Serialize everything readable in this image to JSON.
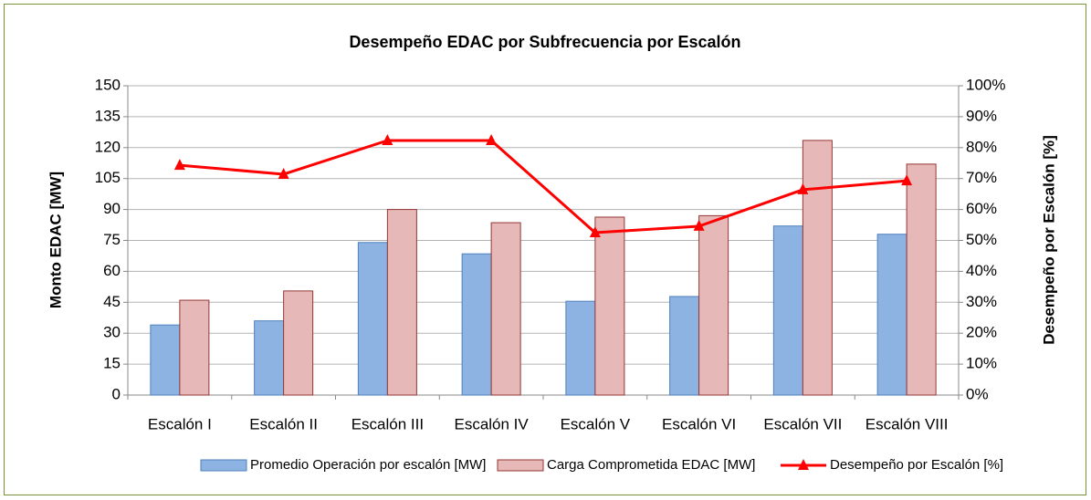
{
  "chart_data": {
    "type": "bar",
    "title": "Desempeño EDAC por Subfrecuencia por Escalón",
    "y_label": "Monto EDAC [MW]",
    "y2_label": "Desempeño por Escalón [%]",
    "categories": [
      "Escalón I",
      "Escalón II",
      "Escalón III",
      "Escalón IV",
      "Escalón V",
      "Escalón VI",
      "Escalón VII",
      "Escalón VIII"
    ],
    "series": [
      {
        "name": "Promedio Operación por escalón [MW]",
        "color": "#8db3e2",
        "values": [
          34,
          36,
          74,
          68.5,
          45.5,
          47.8,
          82,
          78
        ]
      },
      {
        "name": "Carga Comprometida EDAC [MW]",
        "color": "#e6b9b8",
        "values": [
          46,
          50.5,
          90,
          83.6,
          86.3,
          87,
          123.5,
          112
        ]
      },
      {
        "name": "Desempeño por Escalón [%]",
        "color": "#ff0000",
        "type": "line",
        "axis": "y2",
        "values": [
          74.3,
          71.4,
          82.3,
          82.3,
          52.5,
          54.6,
          66.4,
          69.3
        ]
      }
    ],
    "ylim": [
      0,
      150
    ],
    "yticks": [
      0,
      15,
      30,
      45,
      60,
      75,
      90,
      105,
      120,
      135,
      150
    ],
    "y2lim": [
      0,
      100
    ],
    "y2ticks": [
      {
        "value": 0,
        "label": "0%"
      },
      {
        "value": 10,
        "label": "10%"
      },
      {
        "value": 20,
        "label": "20%"
      },
      {
        "value": 30,
        "label": "30%"
      },
      {
        "value": 40,
        "label": "40%"
      },
      {
        "value": 50,
        "label": "50%"
      },
      {
        "value": 60,
        "label": "60%"
      },
      {
        "value": 70,
        "label": "70%"
      },
      {
        "value": 80,
        "label": "80%"
      },
      {
        "value": 90,
        "label": "90%"
      },
      {
        "value": 100,
        "label": "100%"
      }
    ],
    "grid": true,
    "legend": "bottom"
  }
}
